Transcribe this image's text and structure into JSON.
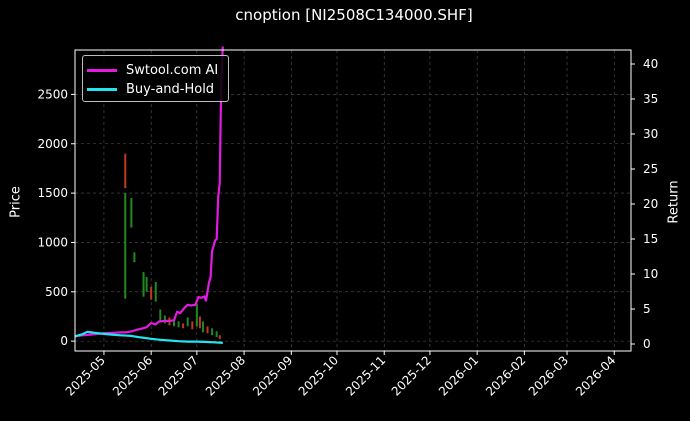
{
  "chart_data": {
    "type": "line",
    "title": "cnoption [NI2508C134000.SHF]",
    "ylabel_left": "Price",
    "ylabel_right": "Return",
    "xlim": [
      "2025-04-12",
      "2026-04-12"
    ],
    "ylim_left": [
      -100,
      2950
    ],
    "ylim_right": [
      -1,
      42
    ],
    "x_ticks": [
      "2025-05",
      "2025-06",
      "2025-07",
      "2025-08",
      "2025-09",
      "2025-10",
      "2025-11",
      "2025-12",
      "2026-01",
      "2026-02",
      "2026-03",
      "2026-04"
    ],
    "x_tick_dates": [
      "2025-05-01",
      "2025-06-01",
      "2025-07-01",
      "2025-08-01",
      "2025-09-01",
      "2025-10-01",
      "2025-11-01",
      "2025-12-01",
      "2026-01-01",
      "2026-02-01",
      "2026-03-01",
      "2026-04-01"
    ],
    "y_ticks_left": [
      0,
      500,
      1000,
      1500,
      2000,
      2500
    ],
    "y_ticks_right": [
      0,
      5,
      10,
      15,
      20,
      25,
      30,
      35,
      40
    ],
    "grid": true,
    "legend_position": "top-left",
    "series": [
      {
        "name": "Swtool.com AI",
        "axis": "right",
        "color": "#e21ae2",
        "points": [
          [
            "2025-04-12",
            1.1
          ],
          [
            "2025-04-17",
            1.25
          ],
          [
            "2025-04-22",
            1.35
          ],
          [
            "2025-04-27",
            1.45
          ],
          [
            "2025-05-02",
            1.55
          ],
          [
            "2025-05-07",
            1.6
          ],
          [
            "2025-05-12",
            1.65
          ],
          [
            "2025-05-15",
            1.65
          ],
          [
            "2025-05-19",
            1.8
          ],
          [
            "2025-05-22",
            2.0
          ],
          [
            "2025-05-26",
            2.2
          ],
          [
            "2025-05-29",
            2.4
          ],
          [
            "2025-06-01",
            3.0
          ],
          [
            "2025-06-04",
            2.8
          ],
          [
            "2025-06-06",
            3.2
          ],
          [
            "2025-06-10",
            3.3
          ],
          [
            "2025-06-13",
            3.3
          ],
          [
            "2025-06-16",
            3.4
          ],
          [
            "2025-06-18",
            4.6
          ],
          [
            "2025-06-20",
            4.4
          ],
          [
            "2025-06-23",
            5.2
          ],
          [
            "2025-06-25",
            5.6
          ],
          [
            "2025-06-27",
            5.5
          ],
          [
            "2025-06-30",
            5.6
          ],
          [
            "2025-07-02",
            6.7
          ],
          [
            "2025-07-04",
            6.6
          ],
          [
            "2025-07-06",
            6.8
          ],
          [
            "2025-07-07",
            6.2
          ],
          [
            "2025-07-09",
            8.8
          ],
          [
            "2025-07-10",
            9.5
          ],
          [
            "2025-07-11",
            13.3
          ],
          [
            "2025-07-12",
            14.0
          ],
          [
            "2025-07-13",
            14.8
          ],
          [
            "2025-07-14",
            15.0
          ],
          [
            "2025-07-15",
            21.0
          ],
          [
            "2025-07-16",
            23.0
          ],
          [
            "2025-07-17",
            37.0
          ],
          [
            "2025-07-18",
            42.5
          ]
        ]
      },
      {
        "name": "Buy-and-Hold",
        "axis": "right",
        "color": "#22e5f2",
        "points": [
          [
            "2025-04-12",
            1.1
          ],
          [
            "2025-04-17",
            1.4
          ],
          [
            "2025-04-20",
            1.75
          ],
          [
            "2025-04-25",
            1.6
          ],
          [
            "2025-05-01",
            1.45
          ],
          [
            "2025-05-06",
            1.35
          ],
          [
            "2025-05-12",
            1.25
          ],
          [
            "2025-05-19",
            1.15
          ],
          [
            "2025-05-25",
            0.95
          ],
          [
            "2025-06-01",
            0.75
          ],
          [
            "2025-06-07",
            0.6
          ],
          [
            "2025-06-13",
            0.5
          ],
          [
            "2025-06-19",
            0.4
          ],
          [
            "2025-06-25",
            0.35
          ],
          [
            "2025-07-01",
            0.35
          ],
          [
            "2025-07-06",
            0.3
          ],
          [
            "2025-07-12",
            0.25
          ],
          [
            "2025-07-18",
            0.15
          ]
        ]
      }
    ],
    "candles": [
      {
        "date": "2025-05-15",
        "open": 1550,
        "close": 1900,
        "color": "#c0391b"
      },
      {
        "date": "2025-05-15",
        "open": 430,
        "close": 1500,
        "color": "#1f8a1f"
      },
      {
        "date": "2025-05-19",
        "open": 1150,
        "close": 1450,
        "color": "#1f8a1f"
      },
      {
        "date": "2025-05-21",
        "open": 800,
        "close": 900,
        "color": "#1f8a1f"
      },
      {
        "date": "2025-05-27",
        "open": 450,
        "close": 700,
        "color": "#1f8a1f"
      },
      {
        "date": "2025-05-29",
        "open": 500,
        "close": 650,
        "color": "#1f8a1f"
      },
      {
        "date": "2025-06-01",
        "open": 420,
        "close": 550,
        "color": "#c0391b"
      },
      {
        "date": "2025-06-04",
        "open": 400,
        "close": 600,
        "color": "#1f8a1f"
      },
      {
        "date": "2025-06-07",
        "open": 200,
        "close": 320,
        "color": "#1f8a1f"
      },
      {
        "date": "2025-06-10",
        "open": 180,
        "close": 260,
        "color": "#1f8a1f"
      },
      {
        "date": "2025-06-13",
        "open": 160,
        "close": 240,
        "color": "#c0391b"
      },
      {
        "date": "2025-06-16",
        "open": 150,
        "close": 220,
        "color": "#1f8a1f"
      },
      {
        "date": "2025-06-19",
        "open": 140,
        "close": 200,
        "color": "#1f8a1f"
      },
      {
        "date": "2025-06-22",
        "open": 130,
        "close": 180,
        "color": "#c0391b"
      },
      {
        "date": "2025-06-25",
        "open": 150,
        "close": 240,
        "color": "#1f8a1f"
      },
      {
        "date": "2025-06-28",
        "open": 120,
        "close": 200,
        "color": "#c0391b"
      },
      {
        "date": "2025-07-01",
        "open": 150,
        "close": 380,
        "color": "#1f8a1f"
      },
      {
        "date": "2025-07-03",
        "open": 130,
        "close": 250,
        "color": "#c0391b"
      },
      {
        "date": "2025-07-05",
        "open": 90,
        "close": 200,
        "color": "#1f8a1f"
      },
      {
        "date": "2025-07-08",
        "open": 80,
        "close": 150,
        "color": "#c0391b"
      },
      {
        "date": "2025-07-11",
        "open": 60,
        "close": 130,
        "color": "#1f8a1f"
      },
      {
        "date": "2025-07-14",
        "open": 40,
        "close": 100,
        "color": "#1f8a1f"
      },
      {
        "date": "2025-07-16",
        "open": 20,
        "close": 60,
        "color": "#c0391b"
      }
    ]
  }
}
